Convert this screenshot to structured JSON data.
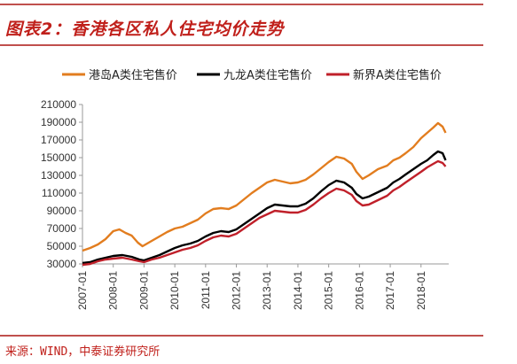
{
  "header": {
    "title": "图表2：香港各区私人住宅均价走势"
  },
  "footer": {
    "source": "来源：WIND，中泰证券研究所"
  },
  "colors": {
    "accent": "#c0504d",
    "hk_island": "#e27d1f",
    "kowloon": "#000000",
    "new_territories": "#c0202a"
  },
  "chart_data": {
    "type": "line",
    "title": "",
    "xlabel": "",
    "ylabel": "",
    "legend_position": "top",
    "grid": false,
    "ylim": [
      30000,
      210000
    ],
    "yticks": [
      30000,
      50000,
      70000,
      90000,
      110000,
      130000,
      150000,
      170000,
      190000,
      210000
    ],
    "xlim": [
      2007.0,
      2018.9
    ],
    "xticks": [
      "2007-01",
      "2008-01",
      "2009-01",
      "2010-01",
      "2011-01",
      "2012-01",
      "2013-01",
      "2014-01",
      "2015-01",
      "2016-01",
      "2017-01",
      "2018-01"
    ],
    "series": [
      {
        "name": "港岛A类住宅售价",
        "color": "#e27d1f",
        "points": [
          [
            2007.0,
            45000
          ],
          [
            2007.25,
            48000
          ],
          [
            2007.5,
            52000
          ],
          [
            2007.75,
            58000
          ],
          [
            2008.0,
            67000
          ],
          [
            2008.2,
            69000
          ],
          [
            2008.4,
            65000
          ],
          [
            2008.6,
            62000
          ],
          [
            2008.8,
            54000
          ],
          [
            2008.95,
            50000
          ],
          [
            2009.1,
            53000
          ],
          [
            2009.3,
            57000
          ],
          [
            2009.5,
            61000
          ],
          [
            2009.75,
            66000
          ],
          [
            2010.0,
            70000
          ],
          [
            2010.25,
            72000
          ],
          [
            2010.5,
            76000
          ],
          [
            2010.75,
            80000
          ],
          [
            2011.0,
            87000
          ],
          [
            2011.25,
            92000
          ],
          [
            2011.5,
            93000
          ],
          [
            2011.75,
            92000
          ],
          [
            2012.0,
            96000
          ],
          [
            2012.25,
            103000
          ],
          [
            2012.5,
            110000
          ],
          [
            2012.75,
            116000
          ],
          [
            2013.0,
            122000
          ],
          [
            2013.25,
            125000
          ],
          [
            2013.5,
            123000
          ],
          [
            2013.75,
            121000
          ],
          [
            2014.0,
            122000
          ],
          [
            2014.25,
            125000
          ],
          [
            2014.5,
            131000
          ],
          [
            2014.75,
            138000
          ],
          [
            2015.0,
            145000
          ],
          [
            2015.25,
            151000
          ],
          [
            2015.5,
            149000
          ],
          [
            2015.75,
            143000
          ],
          [
            2015.9,
            134000
          ],
          [
            2016.1,
            126000
          ],
          [
            2016.3,
            130000
          ],
          [
            2016.6,
            137000
          ],
          [
            2016.9,
            141000
          ],
          [
            2017.1,
            147000
          ],
          [
            2017.3,
            150000
          ],
          [
            2017.5,
            155000
          ],
          [
            2017.75,
            162000
          ],
          [
            2018.0,
            172000
          ],
          [
            2018.2,
            178000
          ],
          [
            2018.4,
            184000
          ],
          [
            2018.55,
            189000
          ],
          [
            2018.7,
            185000
          ],
          [
            2018.8,
            178000
          ]
        ]
      },
      {
        "name": "九龙A类住宅售价",
        "color": "#000000",
        "points": [
          [
            2007.0,
            31000
          ],
          [
            2007.25,
            32000
          ],
          [
            2007.5,
            35000
          ],
          [
            2007.75,
            37000
          ],
          [
            2008.0,
            39000
          ],
          [
            2008.3,
            40000
          ],
          [
            2008.6,
            38000
          ],
          [
            2008.85,
            35000
          ],
          [
            2009.0,
            34000
          ],
          [
            2009.25,
            37000
          ],
          [
            2009.5,
            40000
          ],
          [
            2009.75,
            44000
          ],
          [
            2010.0,
            48000
          ],
          [
            2010.25,
            51000
          ],
          [
            2010.5,
            53000
          ],
          [
            2010.75,
            56000
          ],
          [
            2011.0,
            61000
          ],
          [
            2011.25,
            65000
          ],
          [
            2011.5,
            67000
          ],
          [
            2011.75,
            66000
          ],
          [
            2012.0,
            69000
          ],
          [
            2012.25,
            75000
          ],
          [
            2012.5,
            81000
          ],
          [
            2012.75,
            87000
          ],
          [
            2013.0,
            93000
          ],
          [
            2013.25,
            97000
          ],
          [
            2013.5,
            96000
          ],
          [
            2013.75,
            95000
          ],
          [
            2014.0,
            95000
          ],
          [
            2014.25,
            98000
          ],
          [
            2014.5,
            104000
          ],
          [
            2014.75,
            112000
          ],
          [
            2015.0,
            119000
          ],
          [
            2015.25,
            124000
          ],
          [
            2015.5,
            122000
          ],
          [
            2015.75,
            116000
          ],
          [
            2015.9,
            109000
          ],
          [
            2016.1,
            104000
          ],
          [
            2016.3,
            106000
          ],
          [
            2016.6,
            111000
          ],
          [
            2016.9,
            116000
          ],
          [
            2017.1,
            122000
          ],
          [
            2017.3,
            126000
          ],
          [
            2017.5,
            131000
          ],
          [
            2017.75,
            137000
          ],
          [
            2018.0,
            143000
          ],
          [
            2018.2,
            147000
          ],
          [
            2018.4,
            153000
          ],
          [
            2018.55,
            157000
          ],
          [
            2018.7,
            155000
          ],
          [
            2018.8,
            147000
          ]
        ]
      },
      {
        "name": "新界A类住宅售价",
        "color": "#c0202a",
        "points": [
          [
            2007.0,
            29000
          ],
          [
            2007.25,
            30000
          ],
          [
            2007.5,
            33000
          ],
          [
            2007.75,
            35000
          ],
          [
            2008.0,
            36000
          ],
          [
            2008.3,
            37000
          ],
          [
            2008.6,
            35000
          ],
          [
            2008.85,
            33000
          ],
          [
            2009.0,
            32000
          ],
          [
            2009.25,
            35000
          ],
          [
            2009.5,
            37000
          ],
          [
            2009.75,
            40000
          ],
          [
            2010.0,
            43000
          ],
          [
            2010.25,
            46000
          ],
          [
            2010.5,
            48000
          ],
          [
            2010.75,
            51000
          ],
          [
            2011.0,
            56000
          ],
          [
            2011.25,
            60000
          ],
          [
            2011.5,
            62000
          ],
          [
            2011.75,
            61000
          ],
          [
            2012.0,
            64000
          ],
          [
            2012.25,
            70000
          ],
          [
            2012.5,
            76000
          ],
          [
            2012.75,
            82000
          ],
          [
            2013.0,
            86000
          ],
          [
            2013.25,
            90000
          ],
          [
            2013.5,
            89000
          ],
          [
            2013.75,
            88000
          ],
          [
            2014.0,
            88000
          ],
          [
            2014.25,
            91000
          ],
          [
            2014.5,
            97000
          ],
          [
            2014.75,
            104000
          ],
          [
            2015.0,
            110000
          ],
          [
            2015.25,
            115000
          ],
          [
            2015.5,
            113000
          ],
          [
            2015.75,
            108000
          ],
          [
            2015.9,
            101000
          ],
          [
            2016.1,
            96000
          ],
          [
            2016.3,
            97000
          ],
          [
            2016.6,
            102000
          ],
          [
            2016.9,
            107000
          ],
          [
            2017.1,
            113000
          ],
          [
            2017.3,
            117000
          ],
          [
            2017.5,
            122000
          ],
          [
            2017.75,
            128000
          ],
          [
            2018.0,
            134000
          ],
          [
            2018.2,
            139000
          ],
          [
            2018.4,
            143000
          ],
          [
            2018.55,
            146000
          ],
          [
            2018.7,
            144000
          ],
          [
            2018.8,
            140000
          ]
        ]
      }
    ]
  }
}
